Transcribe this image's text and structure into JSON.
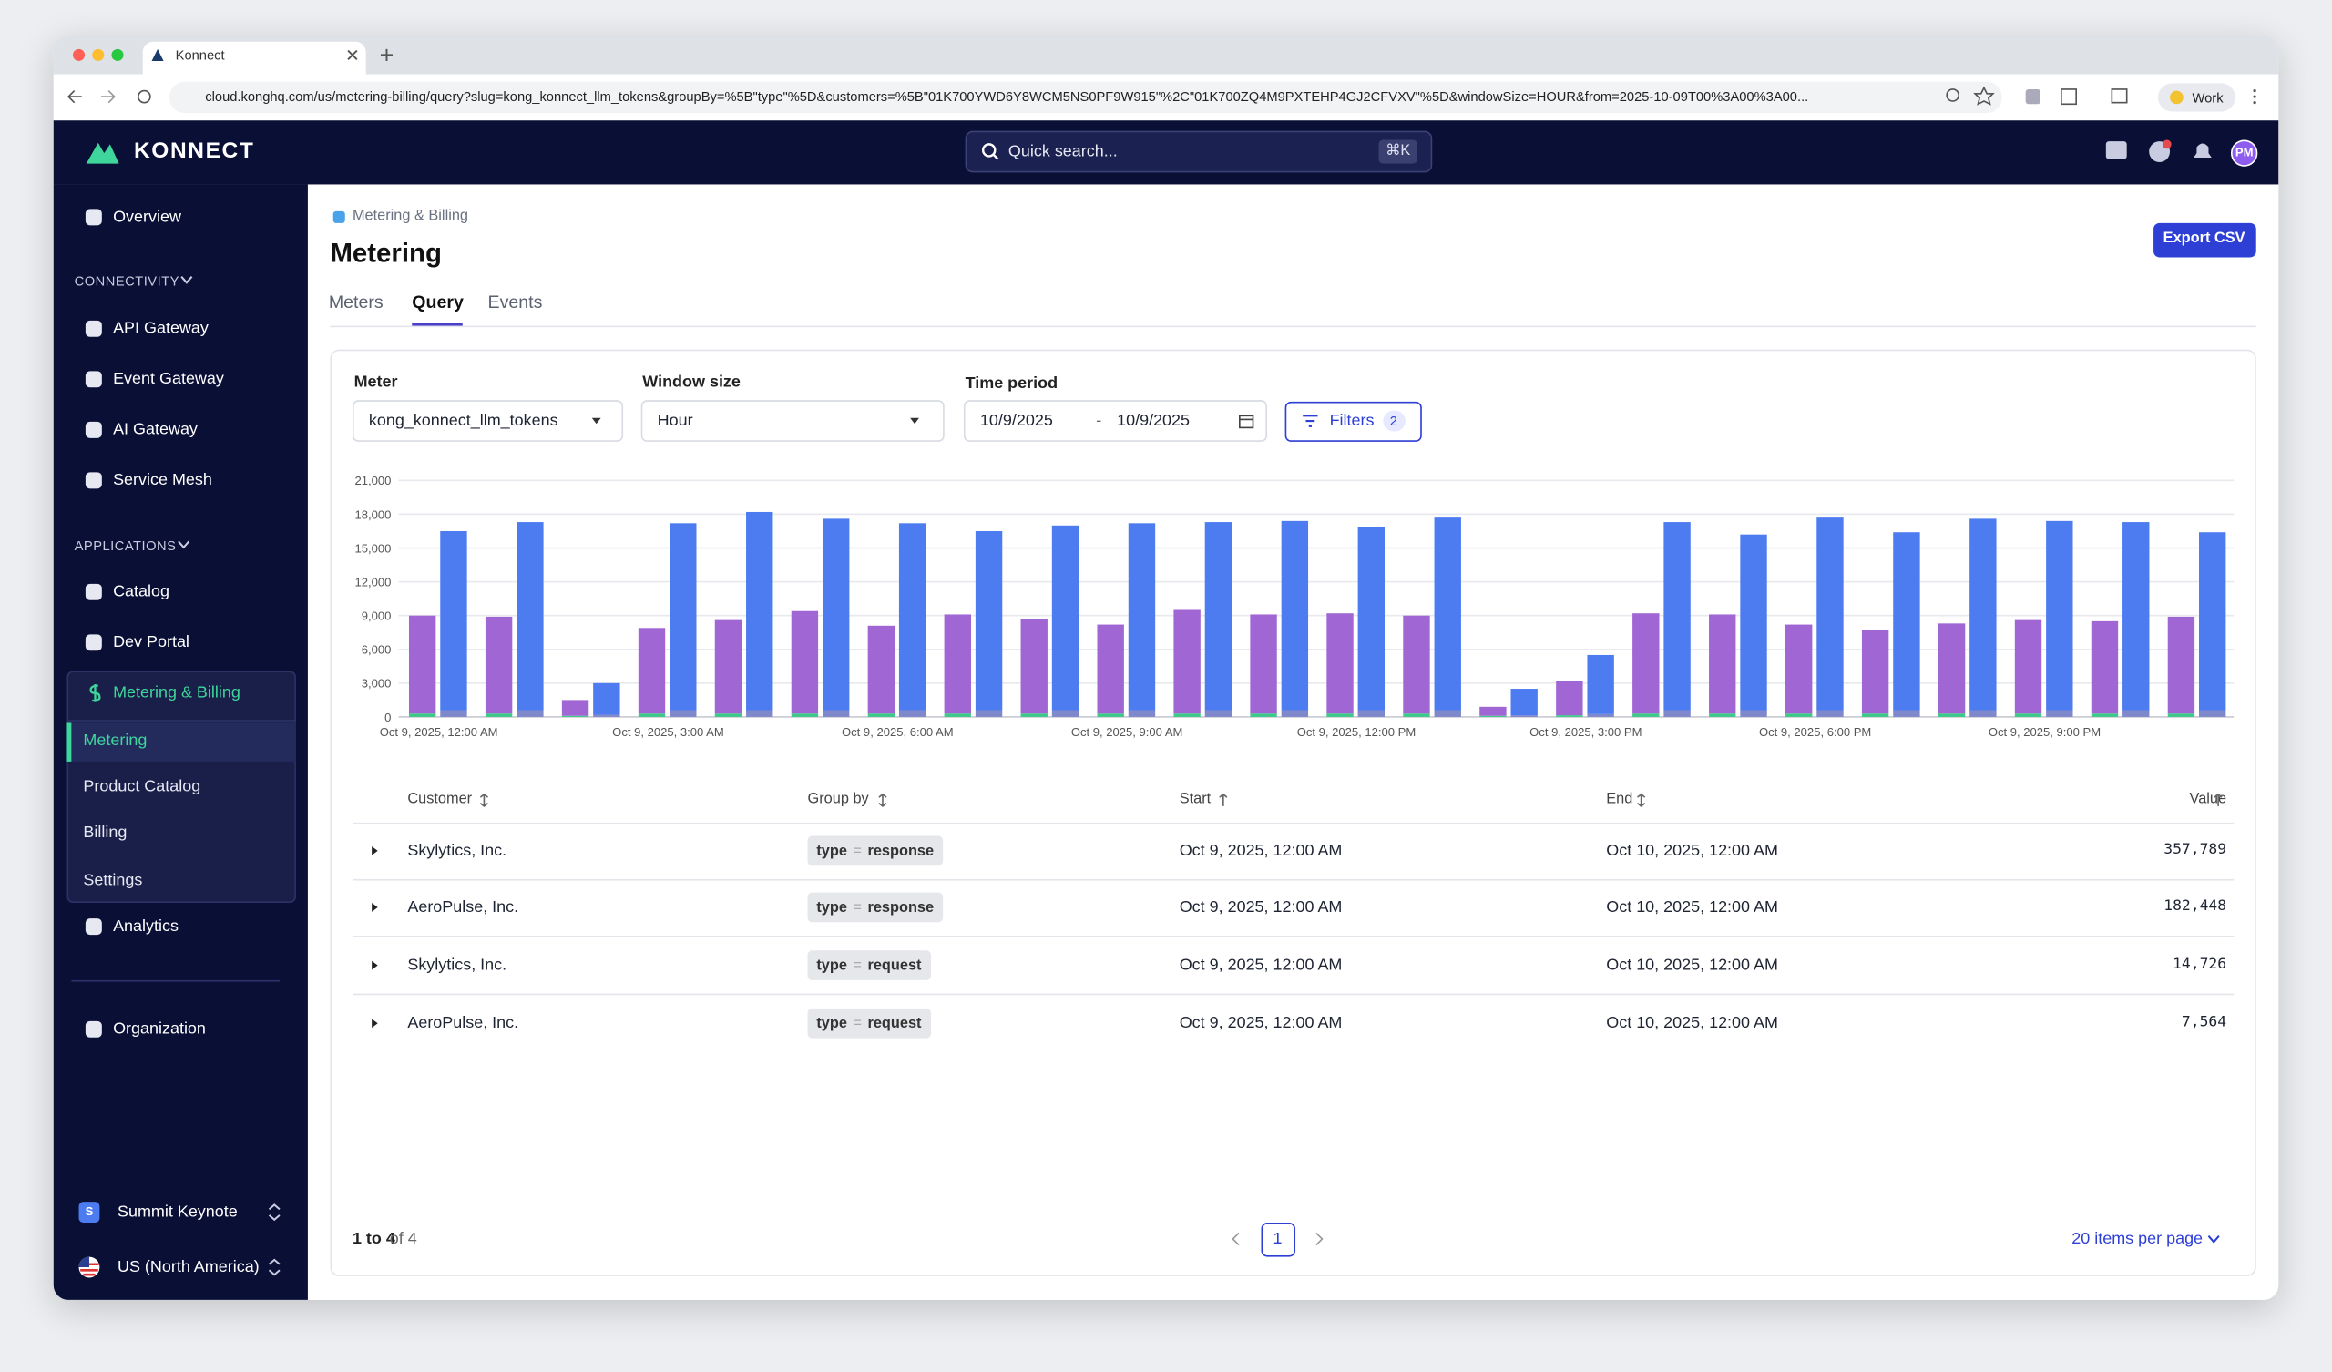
{
  "browser": {
    "tab_title": "Konnect",
    "url": "cloud.konghq.com/us/metering-billing/query?slug=kong_konnect_llm_tokens&groupBy=%5B\"type\"%5D&customers=%5B\"01K700YWD6Y8WCM5NS0PF9W915\"%2C\"01K700ZQ4M9PXTEHP4GJ2CFVXV\"%5D&windowSize=HOUR&from=2025-10-09T00%3A00%3A00...",
    "profile": "Work"
  },
  "header": {
    "logo": "KONNECT",
    "search": "Quick search...",
    "shortcut": "⌘K",
    "avatar": "PM"
  },
  "sidebar": {
    "top": [
      "Overview"
    ],
    "sections": [
      {
        "title": "CONNECTIVITY",
        "items": [
          "API Gateway",
          "Event Gateway",
          "AI Gateway",
          "Service Mesh"
        ]
      },
      {
        "title": "APPLICATIONS",
        "items": [
          "Catalog",
          "Dev Portal"
        ]
      }
    ],
    "active_group": "Metering & Billing",
    "sub_items": [
      "Metering",
      "Product Catalog",
      "Billing",
      "Settings"
    ],
    "after": [
      "Analytics"
    ],
    "bottom": [
      "Organization"
    ],
    "org_initial": "S",
    "org": "Summit Keynote",
    "region": "US (North America)"
  },
  "page": {
    "breadcrumb": "Metering & Billing",
    "title": "Metering",
    "tabs": [
      "Meters",
      "Query",
      "Events"
    ],
    "export": "Export CSV"
  },
  "query": {
    "meter_label": "Meter",
    "meter": "kong_konnect_llm_tokens",
    "window_label": "Window size",
    "window": "Hour",
    "period_label": "Time period",
    "from": "10/9/2025",
    "separator": "-",
    "to": "10/9/2025",
    "filters": "Filters",
    "filter_count": 2
  },
  "chart_data": {
    "type": "bar",
    "stacked": true,
    "grid": true,
    "categories": [
      "Oct 9, 2025, 12:00 AM",
      null,
      null,
      "Oct 9, 2025, 3:00 AM",
      null,
      null,
      "Oct 9, 2025, 6:00 AM",
      null,
      null,
      "Oct 9, 2025, 9:00 AM",
      null,
      null,
      "Oct 9, 2025, 12:00 PM",
      null,
      null,
      "Oct 9, 2025, 3:00 PM",
      null,
      null,
      "Oct 9, 2025, 6:00 PM",
      null,
      null,
      "Oct 9, 2025, 9:00 PM",
      null,
      null
    ],
    "ylim": [
      0,
      21000
    ],
    "yticks": [
      0,
      {
        "value": 3000,
        "label": "3,000"
      },
      {
        "value": 6000,
        "label": "6,000"
      },
      {
        "value": 9000,
        "label": "9,000"
      },
      {
        "value": 12000,
        "label": "12,000"
      },
      {
        "value": 15000,
        "label": "15,000"
      },
      {
        "value": 18000,
        "label": "18,000"
      },
      {
        "value": 21000,
        "label": "21,000"
      }
    ],
    "bars": [
      {
        "segments": [
          {
            "color": "#3ec98a",
            "values": [
              300,
              300,
              100,
              300,
              300,
              300,
              300,
              300,
              300,
              300,
              300,
              300,
              300,
              300,
              100,
              150,
              300,
              300,
              300,
              300,
              300,
              300,
              300,
              300
            ]
          },
          {
            "color": "#a066d3",
            "values": [
              8700,
              8600,
              1400,
              7600,
              8300,
              9100,
              7800,
              8800,
              8400,
              7900,
              9200,
              8800,
              8900,
              8700,
              800,
              3050,
              8900,
              8800,
              7900,
              7400,
              8000,
              8300,
              8200,
              8600
            ]
          }
        ]
      },
      {
        "segments": [
          {
            "color": "#8088cc",
            "values": [
              600,
              600,
              200,
              600,
              600,
              600,
              600,
              600,
              600,
              600,
              600,
              600,
              600,
              600,
              150,
              250,
              600,
              600,
              600,
              600,
              600,
              600,
              600,
              600
            ]
          },
          {
            "color": "#4c7cf0",
            "values": [
              15900,
              16700,
              2800,
              16600,
              17600,
              17000,
              16600,
              15900,
              16400,
              16600,
              16700,
              16800,
              16300,
              17100,
              2350,
              5250,
              16700,
              15600,
              17100,
              15800,
              17000,
              16800,
              16700,
              15800
            ]
          }
        ]
      }
    ]
  },
  "table": {
    "columns": [
      "Customer",
      "Group by",
      "Start",
      "End",
      "Value"
    ],
    "rows": [
      [
        "Skylytics, Inc.",
        {
          "key": "type",
          "op": "=",
          "val": "response"
        },
        "Oct 9, 2025, 12:00 AM",
        "Oct 10, 2025, 12:00 AM",
        "357,789"
      ],
      [
        "AeroPulse, Inc.",
        {
          "key": "type",
          "op": "=",
          "val": "response"
        },
        "Oct 9, 2025, 12:00 AM",
        "Oct 10, 2025, 12:00 AM",
        "182,448"
      ],
      [
        "Skylytics, Inc.",
        {
          "key": "type",
          "op": "=",
          "val": "request"
        },
        "Oct 9, 2025, 12:00 AM",
        "Oct 10, 2025, 12:00 AM",
        "14,726"
      ],
      [
        "AeroPulse, Inc.",
        {
          "key": "type",
          "op": "=",
          "val": "request"
        },
        "Oct 9, 2025, 12:00 AM",
        "Oct 10, 2025, 12:00 AM",
        "7,564"
      ]
    ]
  },
  "pagination": {
    "range": "1 to 4",
    "total": "of 4",
    "page": 1,
    "per_page": "20 items per page"
  }
}
